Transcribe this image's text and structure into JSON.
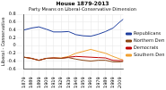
{
  "chart_data": {
    "type": "line",
    "title": "House 1879-2013",
    "subtitle": "Party Means on Liberal-Conservative Dimension",
    "y_label": "Liberal - Conservative",
    "x": [
      1879,
      1889,
      1899,
      1909,
      1919,
      1929,
      1939,
      1949,
      1959,
      1969,
      1979,
      1989,
      1999,
      2009,
      2013
    ],
    "series": [
      {
        "name": "Republicans",
        "color": "#1f3f9f",
        "values": [
          0.4,
          0.45,
          0.48,
          0.42,
          0.35,
          0.35,
          0.36,
          0.28,
          0.25,
          0.24,
          0.29,
          0.36,
          0.45,
          0.62,
          0.68
        ]
      },
      {
        "name": "Northern Democrats",
        "color": "#8b4513",
        "values": [
          -0.3,
          -0.33,
          -0.38,
          -0.33,
          -0.32,
          -0.33,
          -0.31,
          -0.35,
          -0.38,
          -0.4,
          -0.38,
          -0.38,
          -0.42,
          -0.42,
          -0.41
        ]
      },
      {
        "name": "Democrats",
        "color": "#c00000",
        "values": [
          -0.3,
          -0.33,
          -0.38,
          -0.33,
          -0.32,
          -0.33,
          -0.3,
          -0.28,
          -0.29,
          -0.3,
          -0.31,
          -0.32,
          -0.38,
          -0.39,
          -0.39
        ]
      },
      {
        "name": "Southern Democrats",
        "color": "#f0a030",
        "values": [
          -0.3,
          -0.33,
          -0.38,
          -0.33,
          -0.32,
          -0.32,
          -0.28,
          -0.2,
          -0.15,
          -0.1,
          -0.15,
          -0.2,
          -0.28,
          -0.35,
          -0.37
        ]
      }
    ],
    "xlim": [
      1879,
      2013
    ],
    "xticks": [
      1879,
      1889,
      1899,
      1909,
      1919,
      1929,
      1939,
      1949,
      1959,
      1969,
      1979,
      1989,
      1999,
      2009
    ],
    "ylim": [
      -0.6,
      0.8
    ],
    "yticks": [
      -0.6,
      -0.4,
      -0.2,
      0,
      0.2,
      0.4,
      0.6,
      0.8
    ],
    "grid": true,
    "legend": "right"
  }
}
